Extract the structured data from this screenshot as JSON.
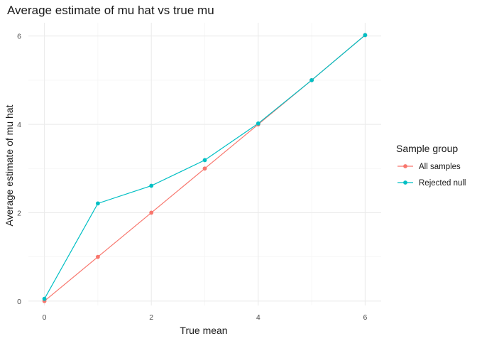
{
  "chart_data": {
    "type": "line",
    "title": "Average estimate of mu hat vs true mu",
    "xlabel": "True mean",
    "ylabel": "Average estimate of mu hat",
    "xlim": [
      -0.3,
      6.3
    ],
    "ylim": [
      -0.1,
      6.3
    ],
    "x_ticks": [
      0,
      2,
      4,
      6
    ],
    "y_ticks": [
      0,
      2,
      4,
      6
    ],
    "x_minor": [
      1,
      3,
      5
    ],
    "y_minor": [
      1,
      3,
      5
    ],
    "grid": true,
    "legend": {
      "title": "Sample group",
      "position": "right"
    },
    "x": [
      0,
      1,
      2,
      3,
      4,
      5,
      6
    ],
    "series": [
      {
        "name": "All samples",
        "color": "#F8766D",
        "values": [
          0.0,
          1.0,
          2.0,
          3.0,
          4.0,
          5.0,
          6.02
        ]
      },
      {
        "name": "Rejected null",
        "color": "#00BFC4",
        "values": [
          0.05,
          2.21,
          2.61,
          3.19,
          4.02,
          5.0,
          6.02
        ]
      }
    ]
  }
}
